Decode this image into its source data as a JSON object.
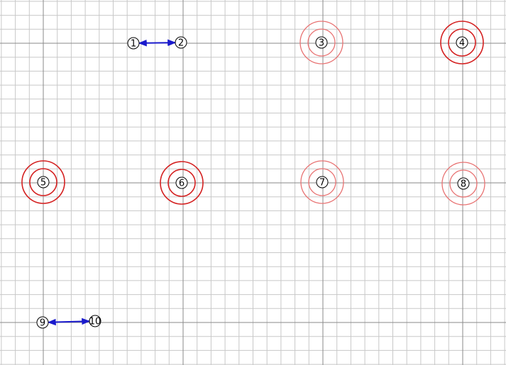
{
  "colors": {
    "background": "#ffffff",
    "minor_grid": "#c8c8c8",
    "major_grid": "#8a8a8a",
    "ring_strong": "#d42020",
    "ring_light": "#e87272",
    "arrow": "#1a1acc",
    "node_stroke": "#000000",
    "node_fill": "#ffffff"
  },
  "nodes": [
    {
      "id": "1",
      "label": "1"
    },
    {
      "id": "2",
      "label": "2"
    },
    {
      "id": "3",
      "label": "3",
      "ring": "light"
    },
    {
      "id": "4",
      "label": "4",
      "ring": "strong"
    },
    {
      "id": "5",
      "label": "5",
      "ring": "strong"
    },
    {
      "id": "6",
      "label": "6",
      "ring": "strong"
    },
    {
      "id": "7",
      "label": "7",
      "ring": "light"
    },
    {
      "id": "8",
      "label": "8",
      "ring": "light"
    },
    {
      "id": "9",
      "label": "9"
    },
    {
      "id": "10",
      "label": "10"
    }
  ],
  "links": [
    {
      "from": "2",
      "to": "1"
    },
    {
      "from": "10",
      "to": "9"
    }
  ]
}
